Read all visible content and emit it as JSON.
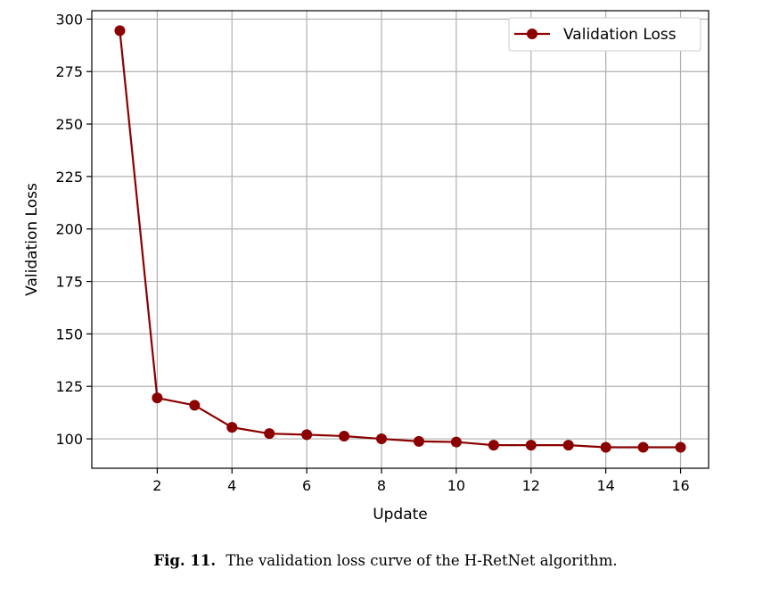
{
  "chart_data": {
    "type": "line",
    "xlabel": "Update",
    "ylabel": "Validation Loss",
    "xlim": [
      0.25,
      16.75
    ],
    "ylim": [
      86,
      304
    ],
    "xticks": [
      2,
      4,
      6,
      8,
      10,
      12,
      14,
      16
    ],
    "yticks": [
      100,
      125,
      150,
      175,
      200,
      225,
      250,
      275,
      300
    ],
    "grid": true,
    "legend_position": "top-right",
    "series": [
      {
        "name": "Validation Loss",
        "color": "#8b0000",
        "marker": "circle",
        "x": [
          1,
          2,
          3,
          4,
          5,
          6,
          7,
          8,
          9,
          10,
          11,
          12,
          13,
          14,
          15,
          16
        ],
        "y": [
          294.5,
          119.5,
          116,
          105.5,
          102.5,
          102,
          101.3,
          100,
          98.8,
          98.5,
          97,
          97,
          97,
          96,
          96,
          96
        ]
      }
    ]
  },
  "caption": {
    "label": "Fig. 11.",
    "text": "The validation loss curve of the H-RetNet algorithm."
  }
}
